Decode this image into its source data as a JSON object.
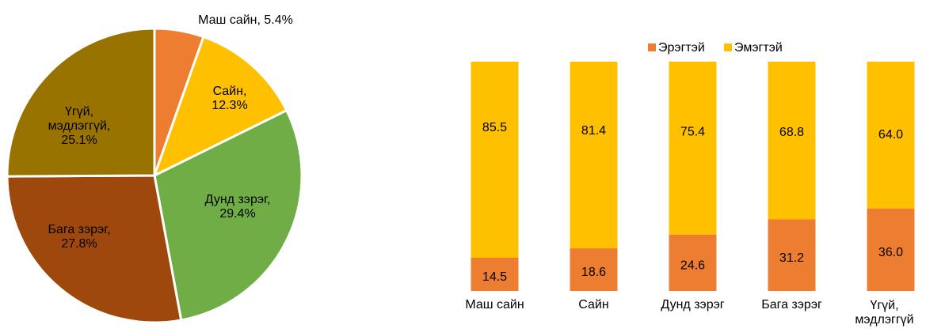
{
  "chart_data": [
    {
      "type": "pie",
      "values": [
        5.4,
        12.3,
        29.4,
        27.8,
        25.1
      ],
      "value_labels": [
        "Маш сайн, 5.4%",
        "Сайн,\n12.3%",
        "Дунд зэрэг,\n29.4%",
        "Бага зэрэг,\n27.8%",
        "Үгүй,\nмэдлэггүй,\n25.1%"
      ],
      "colors": [
        "#ED7D31",
        "#FFC000",
        "#70AD47",
        "#9E480E",
        "#997300"
      ]
    },
    {
      "type": "bar",
      "stacked": true,
      "categories": [
        "Маш сайн",
        "Сайн",
        "Дунд зэрэг",
        "Бага зэрэг",
        "Үгүй,\nмэдлэггүй"
      ],
      "series": [
        {
          "name": "Эрэгтэй",
          "color": "#ED7D31",
          "values": [
            14.5,
            18.6,
            24.6,
            31.2,
            36
          ],
          "value_labels": [
            "14.5",
            "18.6",
            "24.6",
            "31.2",
            "36.0"
          ]
        },
        {
          "name": "Эмэгтэй",
          "color": "#FFC000",
          "values": [
            85.5,
            81.4,
            75.4,
            68.8,
            64
          ],
          "value_labels": [
            "85.5",
            "81.4",
            "75.4",
            "68.8",
            "64.0"
          ]
        }
      ],
      "ylim": [
        0,
        100
      ],
      "legend": "top"
    }
  ]
}
